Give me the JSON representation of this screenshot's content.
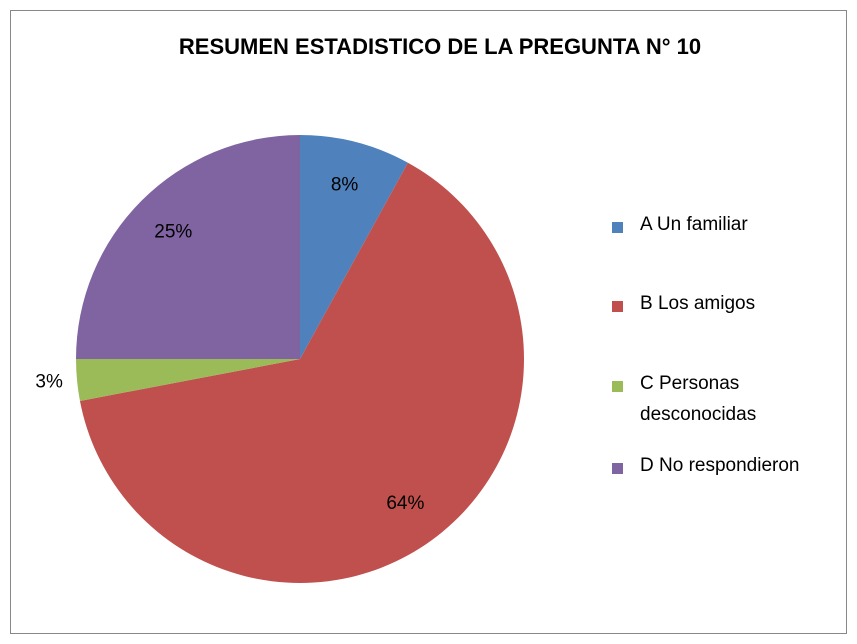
{
  "chart_data": {
    "type": "pie",
    "title": "RESUMEN ESTADISTICO DE LA PREGUNTA N°  10",
    "categories": [
      "A Un familiar",
      "B Los amigos",
      "C Personas desconocidas",
      "D No respondieron"
    ],
    "values": [
      8,
      64,
      3,
      25
    ],
    "value_labels": [
      "8%",
      "64%",
      "3%",
      "25%"
    ],
    "colors": [
      "#4f81bd",
      "#c0504d",
      "#9bbb59",
      "#8064a2"
    ],
    "legend": "right"
  }
}
